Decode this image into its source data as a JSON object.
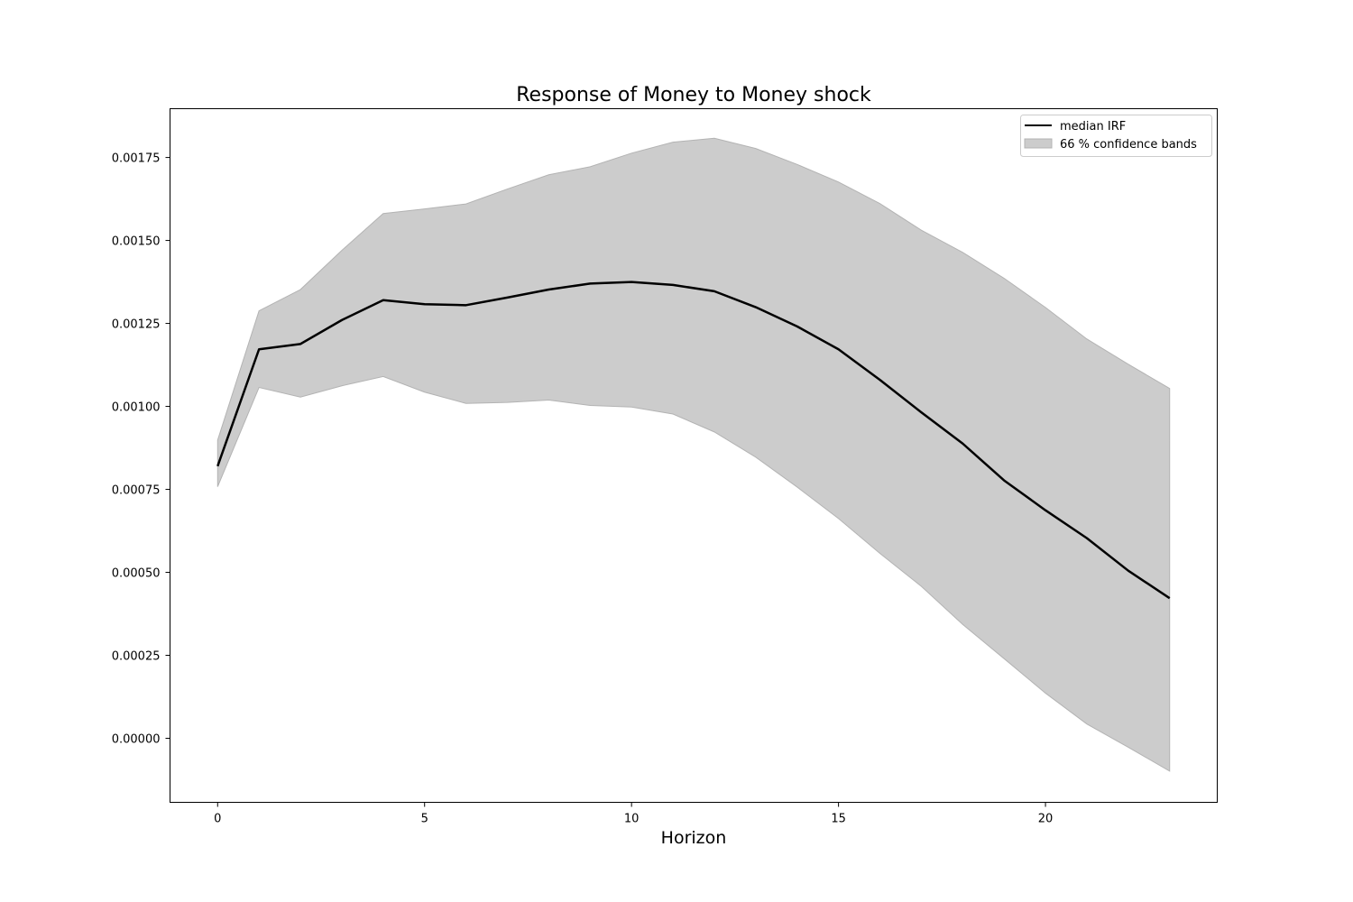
{
  "chart_data": {
    "type": "area",
    "title": "Response of Money to Money shock",
    "xlabel": "Horizon",
    "ylabel": "",
    "xlim": [
      -1.15,
      24.15
    ],
    "ylim": [
      -0.000193,
      0.001897
    ],
    "grid": false,
    "legend_position": "top-right",
    "x_ticks": [
      0,
      5,
      10,
      15,
      20
    ],
    "x_tick_labels": [
      "0",
      "5",
      "10",
      "15",
      "20"
    ],
    "y_ticks": [
      0,
      0.00025,
      0.0005,
      0.00075,
      0.001,
      0.00125,
      0.0015,
      0.00175
    ],
    "y_tick_labels": [
      "0.00000",
      "0.00025",
      "0.00050",
      "0.00075",
      "0.00100",
      "0.00125",
      "0.00150",
      "0.00175"
    ],
    "x": [
      0,
      1,
      2,
      3,
      4,
      5,
      6,
      7,
      8,
      9,
      10,
      11,
      12,
      13,
      14,
      15,
      16,
      17,
      18,
      19,
      20,
      21,
      22,
      23
    ],
    "series": [
      {
        "name": "median IRF",
        "kind": "line",
        "color": "#000000",
        "values": [
          0.00082,
          0.001172,
          0.001188,
          0.00126,
          0.00132,
          0.001308,
          0.001305,
          0.001328,
          0.001352,
          0.00137,
          0.001375,
          0.001366,
          0.001347,
          0.001299,
          0.001241,
          0.001172,
          0.00108,
          0.000982,
          0.000888,
          0.000777,
          0.000687,
          0.000603,
          0.000505,
          0.000422
        ]
      },
      {
        "name": "66 % confidence bands",
        "kind": "band",
        "color": "#cccccc",
        "lower": [
          0.000758,
          0.001057,
          0.001028,
          0.001062,
          0.00109,
          0.001043,
          0.001009,
          0.001012,
          0.001019,
          0.001003,
          0.000998,
          0.000977,
          0.000923,
          0.000847,
          0.000757,
          0.000662,
          0.000557,
          0.000458,
          0.000343,
          0.00024,
          0.000136,
          4.3e-05,
          -2.7e-05,
          -9.9e-05
        ],
        "upper": [
          0.000898,
          0.001288,
          0.001352,
          0.00147,
          0.001581,
          0.001595,
          0.00161,
          0.001655,
          0.001698,
          0.001722,
          0.001763,
          0.001796,
          0.001808,
          0.001777,
          0.001729,
          0.001676,
          0.001611,
          0.001531,
          0.001464,
          0.001386,
          0.001298,
          0.001203,
          0.001127,
          0.001054
        ]
      }
    ]
  }
}
